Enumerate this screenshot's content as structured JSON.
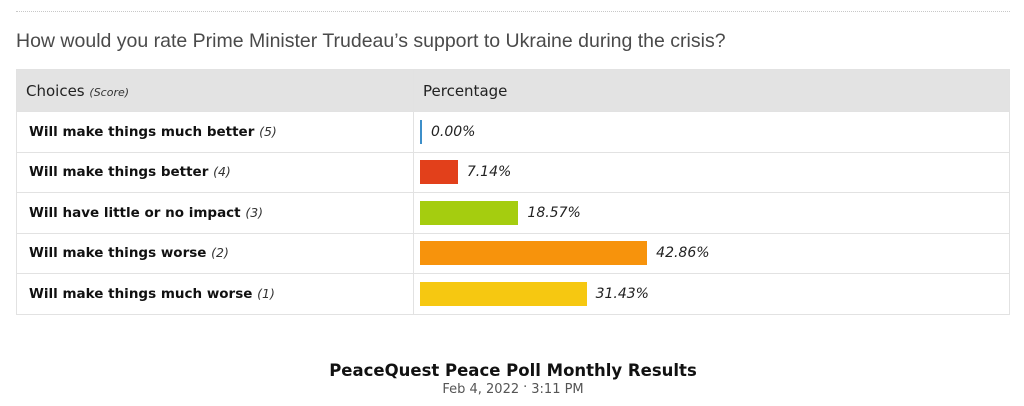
{
  "question": "How would you rate Prime Minister Trudeau’s support to Ukraine during the crisis?",
  "table": {
    "header_choices": "Choices",
    "header_score": "(Score)",
    "header_percentage": "Percentage"
  },
  "chart_data": {
    "type": "bar",
    "orientation": "horizontal",
    "categories": [
      "Will make things much better",
      "Will make things better",
      "Will have little or no impact",
      "Will make things worse",
      "Will make things much worse"
    ],
    "scores": [
      "(5)",
      "(4)",
      "(3)",
      "(2)",
      "(1)"
    ],
    "values": [
      0.0,
      7.14,
      18.57,
      42.86,
      31.43
    ],
    "labels": [
      "0.00%",
      "7.14%",
      "18.57%",
      "42.86%",
      "31.43%"
    ],
    "colors": [
      "#3d8fc9",
      "#e2401b",
      "#a5cd0f",
      "#f7930c",
      "#f6c811"
    ],
    "xlim": [
      0,
      100
    ]
  },
  "footer": {
    "title": "PeaceQuest Peace Poll Monthly Results",
    "date": "Feb 4, 2022",
    "separator": "·",
    "time": "3:11 PM"
  }
}
